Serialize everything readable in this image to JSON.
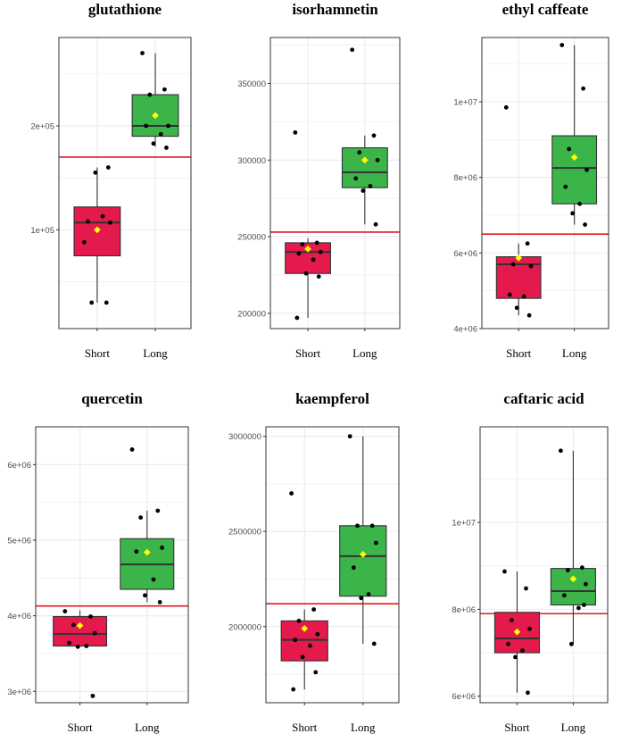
{
  "colors": {
    "short_box": "#e31a4b",
    "long_box": "#3bb54a",
    "threshold_line": "#e31a1c",
    "mean_marker": "#ffff00",
    "point": "#000000",
    "grid": "#ebebeb",
    "border": "#333333"
  },
  "chart_data": [
    {
      "type": "box",
      "title": "glutathione",
      "categories": [
        "Short",
        "Long"
      ],
      "ylim": [
        5000,
        285000
      ],
      "yticks": [
        100000,
        200000
      ],
      "ytick_labels": [
        "1e+05",
        "2e+05"
      ],
      "threshold": 170000,
      "series": [
        {
          "category": "Short",
          "q1": 75000,
          "median": 107000,
          "q3": 122000,
          "whisker_low": 30000,
          "whisker_high": 160000,
          "mean": 100000,
          "points": [
            88000,
            30000,
            30000,
            107000,
            108000,
            113000,
            155000,
            160000
          ]
        },
        {
          "category": "Long",
          "q1": 190000,
          "median": 200000,
          "q3": 230000,
          "whisker_low": 180000,
          "whisker_high": 270000,
          "mean": 210000,
          "points": [
            270000,
            235000,
            230000,
            200000,
            200000,
            192000,
            183000,
            179000
          ]
        }
      ]
    },
    {
      "type": "box",
      "title": "isorhamnetin",
      "categories": [
        "Short",
        "Long"
      ],
      "ylim": [
        190000,
        380000
      ],
      "yticks": [
        200000,
        250000,
        300000,
        350000
      ],
      "ytick_labels": [
        "200000",
        "250000",
        "300000",
        "350000"
      ],
      "threshold": 253000,
      "series": [
        {
          "category": "Short",
          "q1": 226000,
          "median": 240000,
          "q3": 246000,
          "whisker_low": 197000,
          "whisker_high": 249000,
          "mean": 242000,
          "points": [
            318000,
            246000,
            245000,
            240000,
            239000,
            235000,
            226000,
            224000,
            197000
          ]
        },
        {
          "category": "Long",
          "q1": 282000,
          "median": 292000,
          "q3": 308000,
          "whisker_low": 258000,
          "whisker_high": 316000,
          "mean": 300000,
          "points": [
            372000,
            316000,
            305000,
            300000,
            288000,
            283000,
            280000,
            258000
          ]
        }
      ]
    },
    {
      "type": "box",
      "title": "ethyl caffeate",
      "categories": [
        "Short",
        "Long"
      ],
      "ylim": [
        4000000,
        11700000
      ],
      "yticks": [
        4000000,
        6000000,
        8000000,
        10000000
      ],
      "ytick_labels": [
        "4e+06",
        "6e+06",
        "8e+06",
        "1e+07"
      ],
      "threshold": 6500000,
      "series": [
        {
          "category": "Short",
          "q1": 4800000,
          "median": 5700000,
          "q3": 5900000,
          "whisker_low": 4350000,
          "whisker_high": 6250000,
          "mean": 5870000,
          "points": [
            9850000,
            6250000,
            5700000,
            5650000,
            4900000,
            4850000,
            4550000,
            4350000
          ]
        },
        {
          "category": "Long",
          "q1": 7300000,
          "median": 8250000,
          "q3": 9100000,
          "whisker_low": 6750000,
          "whisker_high": 11500000,
          "mean": 8530000,
          "points": [
            11500000,
            10350000,
            8750000,
            8200000,
            7750000,
            7300000,
            7050000,
            6750000
          ]
        }
      ]
    },
    {
      "type": "box",
      "title": "quercetin",
      "categories": [
        "Short",
        "Long"
      ],
      "ylim": [
        2850000,
        6500000
      ],
      "yticks": [
        3000000,
        4000000,
        5000000,
        6000000
      ],
      "ytick_labels": [
        "3e+06",
        "4e+06",
        "5e+06",
        "6e+06"
      ],
      "threshold": 4130000,
      "series": [
        {
          "category": "Short",
          "q1": 3600000,
          "median": 3760000,
          "q3": 3990000,
          "whisker_low": 3590000,
          "whisker_high": 4070000,
          "mean": 3870000,
          "points": [
            4060000,
            3990000,
            3880000,
            3770000,
            3640000,
            3600000,
            3590000,
            2940000
          ]
        },
        {
          "category": "Long",
          "q1": 4350000,
          "median": 4680000,
          "q3": 5020000,
          "whisker_low": 4180000,
          "whisker_high": 5390000,
          "mean": 4840000,
          "points": [
            6200000,
            5390000,
            5300000,
            4900000,
            4850000,
            4480000,
            4270000,
            4180000
          ]
        }
      ]
    },
    {
      "type": "box",
      "title": "kaempferol",
      "categories": [
        "Short",
        "Long"
      ],
      "ylim": [
        1600000,
        3050000
      ],
      "yticks": [
        2000000,
        2500000,
        3000000
      ],
      "ytick_labels": [
        "2000000",
        "2500000",
        "3000000"
      ],
      "threshold": 2120000,
      "series": [
        {
          "category": "Short",
          "q1": 1820000,
          "median": 1930000,
          "q3": 2030000,
          "whisker_low": 1670000,
          "whisker_high": 2090000,
          "mean": 1990000,
          "points": [
            2700000,
            2090000,
            2030000,
            1960000,
            1930000,
            1900000,
            1840000,
            1760000,
            1670000
          ]
        },
        {
          "category": "Long",
          "q1": 2160000,
          "median": 2370000,
          "q3": 2530000,
          "whisker_low": 1910000,
          "whisker_high": 3000000,
          "mean": 2380000,
          "points": [
            3000000,
            2530000,
            2530000,
            2440000,
            2310000,
            2170000,
            2150000,
            1910000
          ]
        }
      ]
    },
    {
      "type": "box",
      "title": "caftaric acid",
      "categories": [
        "Short",
        "Long"
      ],
      "ylim": [
        5850000,
        12200000
      ],
      "yticks": [
        6000000,
        8000000,
        10000000
      ],
      "ytick_labels": [
        "6e+06",
        "8e+06",
        "1e+07"
      ],
      "threshold": 7900000,
      "series": [
        {
          "category": "Short",
          "q1": 7000000,
          "median": 7330000,
          "q3": 7930000,
          "whisker_low": 6080000,
          "whisker_high": 8870000,
          "mean": 7480000,
          "points": [
            8870000,
            8480000,
            7750000,
            7550000,
            7200000,
            7050000,
            6900000,
            6080000
          ]
        },
        {
          "category": "Long",
          "q1": 8100000,
          "median": 8420000,
          "q3": 8940000,
          "whisker_low": 7200000,
          "whisker_high": 11650000,
          "mean": 8700000,
          "points": [
            11650000,
            8960000,
            8900000,
            8580000,
            8320000,
            8030000,
            7200000,
            8100000
          ]
        }
      ]
    }
  ]
}
